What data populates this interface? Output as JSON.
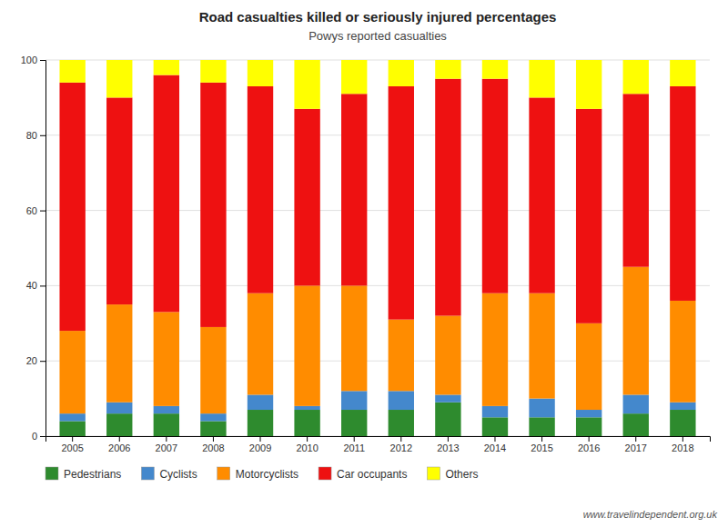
{
  "chart_data": {
    "type": "bar",
    "stacked": true,
    "title": "Road casualties killed or seriously injured percentages",
    "subtitle": "Powys reported casualties",
    "categories": [
      "2005",
      "2006",
      "2007",
      "2008",
      "2009",
      "2010",
      "2011",
      "2012",
      "2013",
      "2014",
      "2015",
      "2016",
      "2017",
      "2018"
    ],
    "series": [
      {
        "name": "Pedestrians",
        "color": "#2e8b2e",
        "values": [
          4,
          6,
          6,
          4,
          7,
          7,
          7,
          7,
          9,
          5,
          5,
          5,
          6,
          7
        ]
      },
      {
        "name": "Cyclists",
        "color": "#4488cc",
        "values": [
          2,
          3,
          2,
          2,
          4,
          1,
          5,
          5,
          2,
          3,
          5,
          2,
          5,
          2
        ]
      },
      {
        "name": "Motorcyclists",
        "color": "#ff8c00",
        "values": [
          22,
          26,
          25,
          23,
          27,
          32,
          28,
          19,
          21,
          30,
          28,
          23,
          34,
          27
        ]
      },
      {
        "name": "Car occupants",
        "color": "#ee1111",
        "values": [
          66,
          55,
          63,
          65,
          55,
          47,
          51,
          62,
          63,
          57,
          52,
          57,
          46,
          57
        ]
      },
      {
        "name": "Others",
        "color": "#ffff00",
        "values": [
          6,
          10,
          4,
          6,
          7,
          13,
          9,
          7,
          5,
          5,
          10,
          13,
          9,
          7
        ]
      }
    ],
    "ylim": [
      0,
      100
    ],
    "yticks": [
      0,
      20,
      40,
      60,
      80,
      100
    ],
    "grid": true,
    "legend": "bottom",
    "annotations": [
      "www.travelindependent.org.uk"
    ]
  }
}
